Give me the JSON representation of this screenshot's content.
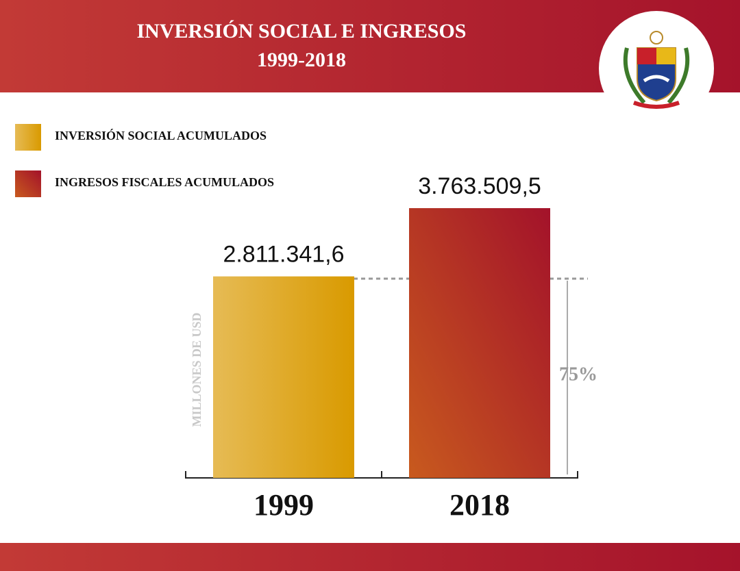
{
  "chart_data": {
    "type": "bar",
    "title": "INVERSIÓN SOCIAL E INGRESOS",
    "subtitle": "1999-2018",
    "y_label": "MILLONES DE USD",
    "annotation": "75%",
    "categories": [
      "1999",
      "2018"
    ],
    "series": [
      {
        "name": "INVERSIÓN SOCIAL ACUMULADOS",
        "color": "#d99a00",
        "values": [
          2811341.6,
          null
        ],
        "value_labels": [
          "2.811.341,6",
          null
        ]
      },
      {
        "name": "INGRESOS FISCALES ACUMULADOS",
        "color": "#a3122a",
        "values": [
          null,
          3763509.5
        ],
        "value_labels": [
          null,
          "3.763.509,5"
        ]
      }
    ]
  }
}
